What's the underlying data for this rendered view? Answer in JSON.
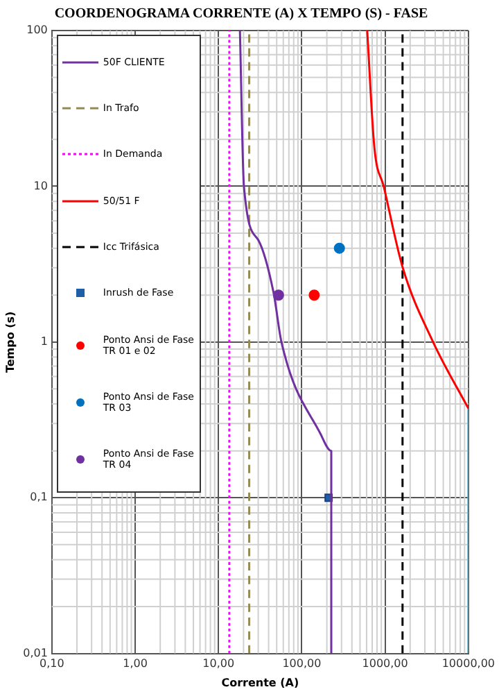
{
  "chart_data": {
    "type": "line",
    "title": "COORDENOGRAMA CORRENTE (A) X TEMPO (S) - FASE",
    "xlabel": "Corrente (A)",
    "ylabel": "Tempo (s)",
    "log": "xy",
    "grid": true,
    "legend": "top left",
    "xlim": [
      0.1,
      10000
    ],
    "ylim": [
      0.01,
      100
    ],
    "xticks": [
      {
        "value": 0.1,
        "label": "0,10"
      },
      {
        "value": 1,
        "label": "1,00"
      },
      {
        "value": 10,
        "label": "10,00"
      },
      {
        "value": 100,
        "label": "100,00"
      },
      {
        "value": 1000,
        "label": "1000,00"
      },
      {
        "value": 10000,
        "label": "10000,00"
      }
    ],
    "yticks": [
      {
        "value": 0.01,
        "label": "0,01"
      },
      {
        "value": 0.1,
        "label": "0,1"
      },
      {
        "value": 1,
        "label": "1"
      },
      {
        "value": 10,
        "label": "10"
      },
      {
        "value": 100,
        "label": "100"
      }
    ],
    "series": [
      {
        "name": "50F CLIENTE",
        "type": "line",
        "color": "#7030a0",
        "line_style": "solid",
        "marker": "none",
        "x": [
          18.1,
          20.2,
          30.2,
          45.8,
          57,
          168,
          226,
          226
        ],
        "values": [
          100,
          10,
          4.5,
          2.08,
          1,
          0.257,
          0.2,
          0.01
        ]
      },
      {
        "name": "In Trafo",
        "type": "line",
        "color": "#948a54",
        "line_style": "dashed",
        "marker": "none",
        "x": [
          23.4,
          23.4
        ],
        "values": [
          0.01,
          100
        ]
      },
      {
        "name": "In Demanda",
        "type": "line",
        "color": "#ff00ff",
        "line_style": "dotted",
        "marker": "none",
        "x": [
          13.5,
          13.5
        ],
        "values": [
          0.01,
          100
        ]
      },
      {
        "name": "50/51 F",
        "type": "line",
        "color": "#ff0000",
        "line_style": "solid",
        "marker": "none",
        "x": [
          610,
          742,
          963,
          1620,
          3770,
          10000
        ],
        "values": [
          100,
          18,
          10,
          3.03,
          1,
          0.374
        ]
      },
      {
        "name": "Icc Trifásica",
        "type": "line",
        "color": "#000000",
        "line_style": "dashed",
        "marker": "none",
        "x": [
          1620,
          1620
        ],
        "values": [
          0.01,
          100
        ]
      },
      {
        "name": "Inrush de Fase",
        "type": "scatter",
        "color": "#1f5fa8",
        "marker": "square",
        "x": [
          210
        ],
        "values": [
          0.1
        ]
      },
      {
        "name": "Ponto Ansi de Fase TR 01 e 02",
        "type": "scatter",
        "color": "#ff0000",
        "marker": "circle",
        "x": [
          141
        ],
        "values": [
          2
        ]
      },
      {
        "name": "Ponto Ansi de Fase TR 03",
        "type": "scatter",
        "color": "#0070c0",
        "marker": "circle",
        "x": [
          283
        ],
        "values": [
          4
        ]
      },
      {
        "name": "Ponto Ansi de Fase TR 04",
        "type": "scatter",
        "color": "#7030a0",
        "marker": "circle",
        "x": [
          52.6
        ],
        "values": [
          2
        ]
      },
      {
        "type": "line",
        "color": "#4bacc6",
        "line_style": "solid",
        "marker": "none",
        "x": [
          10000,
          10000
        ],
        "values": [
          0.374,
          0.01
        ]
      }
    ]
  }
}
